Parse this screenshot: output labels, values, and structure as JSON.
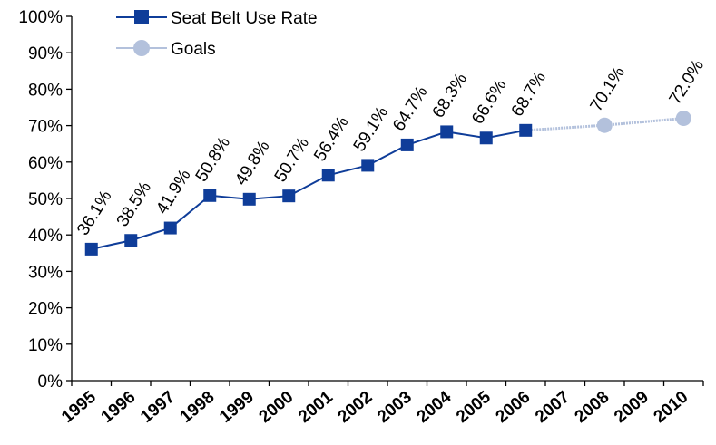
{
  "chart_data": {
    "type": "line",
    "title": "",
    "xlabel": "",
    "ylabel": "",
    "ylim": [
      0,
      100
    ],
    "y_ticks": [
      "0%",
      "10%",
      "20%",
      "30%",
      "40%",
      "50%",
      "60%",
      "70%",
      "80%",
      "90%",
      "100%"
    ],
    "x_ticks": [
      "1995",
      "1996",
      "1997",
      "1998",
      "1999",
      "2000",
      "2001",
      "2002",
      "2003",
      "2004",
      "2005",
      "2006",
      "2007",
      "2008",
      "2009",
      "2010"
    ],
    "grid": false,
    "legend_position": "top-left",
    "series": [
      {
        "name": "Seat Belt Use Rate",
        "color": "#0f3d99",
        "marker": "square",
        "points": [
          {
            "x": "1995",
            "y": 36.1,
            "label": "36.1%"
          },
          {
            "x": "1996",
            "y": 38.5,
            "label": "38.5%"
          },
          {
            "x": "1997",
            "y": 41.9,
            "label": "41.9%"
          },
          {
            "x": "1998",
            "y": 50.8,
            "label": "50.8%"
          },
          {
            "x": "1999",
            "y": 49.8,
            "label": "49.8%"
          },
          {
            "x": "2000",
            "y": 50.7,
            "label": "50.7%"
          },
          {
            "x": "2001",
            "y": 56.4,
            "label": "56.4%"
          },
          {
            "x": "2002",
            "y": 59.1,
            "label": "59.1%"
          },
          {
            "x": "2003",
            "y": 64.7,
            "label": "64.7%"
          },
          {
            "x": "2004",
            "y": 68.3,
            "label": "68.3%"
          },
          {
            "x": "2005",
            "y": 66.6,
            "label": "66.6%"
          },
          {
            "x": "2006",
            "y": 68.7,
            "label": "68.7%"
          }
        ]
      },
      {
        "name": "Goals",
        "color": "#b3c1dc",
        "marker": "circle",
        "points": [
          {
            "x": "2006",
            "y": 68.7
          },
          {
            "x": "2008",
            "y": 70.1,
            "label": "70.1%"
          },
          {
            "x": "2010",
            "y": 72.0,
            "label": "72.0%"
          }
        ]
      }
    ]
  }
}
